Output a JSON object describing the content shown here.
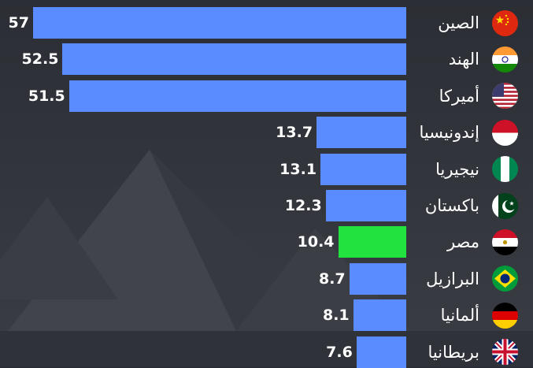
{
  "chart_data": {
    "type": "bar",
    "orientation": "horizontal",
    "categories": [
      "الصين",
      "الهند",
      "أميركا",
      "إندونيسيا",
      "نيجيريا",
      "باكستان",
      "مصر",
      "البرازيل",
      "ألمانيا",
      "بريطانيا"
    ],
    "values": [
      57,
      52.5,
      51.5,
      13.7,
      13.1,
      12.3,
      10.4,
      8.7,
      8.1,
      7.6
    ],
    "value_labels": [
      "57",
      "52.5",
      "51.5",
      "13.7",
      "13.1",
      "12.3",
      "10.4",
      "8.7",
      "8.1",
      "7.6"
    ],
    "flags": [
      "china-flag-icon",
      "india-flag-icon",
      "usa-flag-icon",
      "indonesia-flag-icon",
      "nigeria-flag-icon",
      "pakistan-flag-icon",
      "egypt-flag-icon",
      "brazil-flag-icon",
      "germany-flag-icon",
      "uk-flag-icon"
    ],
    "title": "",
    "xlabel": "",
    "ylabel": "",
    "xlim": [
      0,
      57
    ],
    "grid": false,
    "legend": "none",
    "highlight_index": 6
  },
  "colors": {
    "bar": "#5b8cff",
    "highlight": "#22e23f",
    "text": "#ffffff",
    "background": "#2a2d33"
  }
}
